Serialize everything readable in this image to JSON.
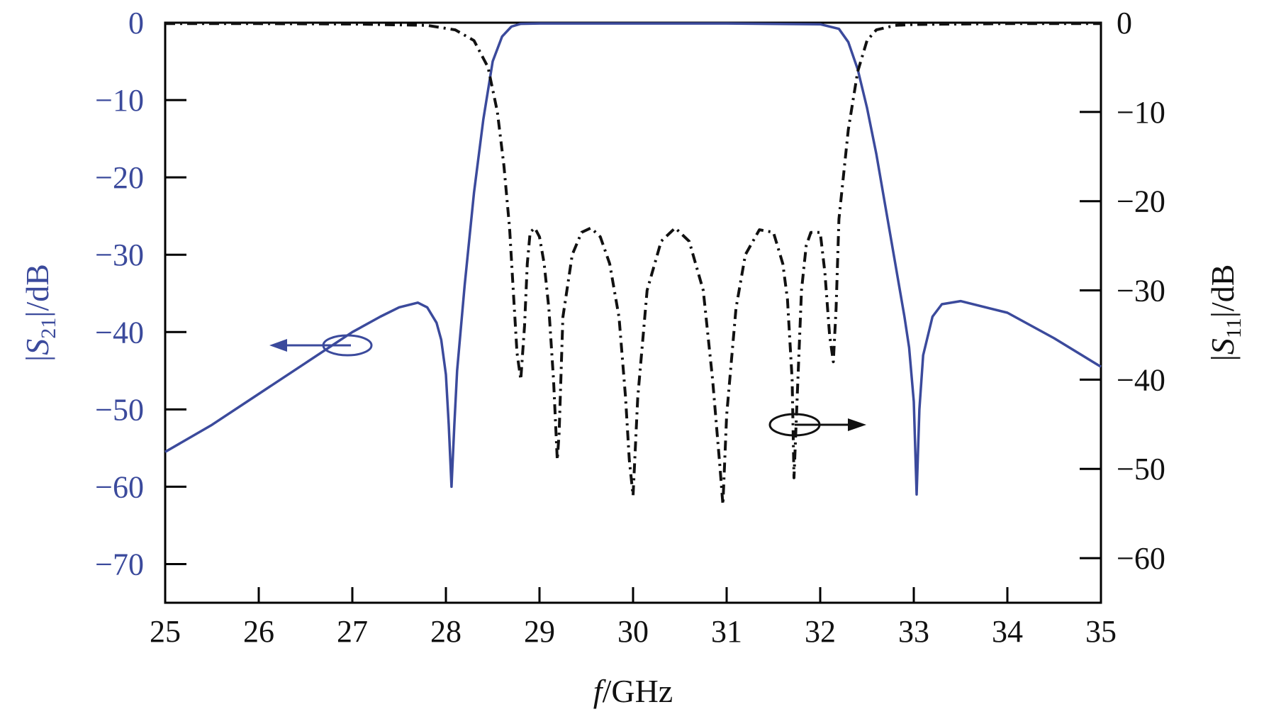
{
  "chart_data": {
    "type": "line",
    "xlabel": "f/GHz",
    "xlabel_parts": {
      "italic": "f",
      "rest": "/GHz"
    },
    "ylabel_left": "|S21|/dB",
    "ylabel_left_parts": {
      "bar_open": "|",
      "S": "S",
      "sub": "21",
      "rest": "|/dB"
    },
    "ylabel_right": "|S11|/dB",
    "ylabel_right_parts": {
      "bar_open": "|",
      "S": "S",
      "sub": "11",
      "rest": "|/dB"
    },
    "xlim": [
      25,
      35
    ],
    "ylim_left": [
      -75,
      0
    ],
    "ylim_right": [
      -65,
      0
    ],
    "x_ticks": [
      "25",
      "26",
      "27",
      "28",
      "29",
      "30",
      "31",
      "32",
      "33",
      "34",
      "35"
    ],
    "y_ticks_left": [
      "0",
      "−10",
      "−20",
      "−30",
      "−40",
      "−50",
      "−60",
      "−70"
    ],
    "y_ticks_left_values": [
      0,
      -10,
      -20,
      -30,
      -40,
      -50,
      -60,
      -70
    ],
    "y_ticks_right": [
      "0",
      "−10",
      "−20",
      "−30",
      "−40",
      "−50",
      "−60"
    ],
    "y_ticks_right_values": [
      0,
      -10,
      -20,
      -30,
      -40,
      -50,
      -60
    ],
    "grid": false,
    "series": [
      {
        "key": "s21",
        "axis": "left",
        "color": "#3b4a9c",
        "style": "solid",
        "x": [
          25.0,
          25.5,
          26.0,
          26.5,
          27.0,
          27.3,
          27.5,
          27.7,
          27.8,
          27.9,
          27.95,
          28.0,
          28.03,
          28.06,
          28.09,
          28.12,
          28.2,
          28.3,
          28.4,
          28.5,
          28.6,
          28.7,
          28.8,
          29.0,
          30.0,
          31.0,
          32.0,
          32.2,
          32.3,
          32.4,
          32.5,
          32.6,
          32.7,
          32.8,
          32.9,
          32.95,
          33.0,
          33.03,
          33.06,
          33.1,
          33.2,
          33.3,
          33.5,
          34.0,
          34.5,
          35.0
        ],
        "y": [
          -55.5,
          -52.0,
          -48.0,
          -44.0,
          -40.0,
          -38.0,
          -36.8,
          -36.2,
          -36.8,
          -38.8,
          -41.0,
          -45.5,
          -52.0,
          -60.0,
          -52.0,
          -45.0,
          -34.0,
          -22.0,
          -12.5,
          -5.0,
          -1.8,
          -0.5,
          -0.15,
          -0.1,
          -0.1,
          -0.1,
          -0.2,
          -0.8,
          -2.5,
          -6.0,
          -11.0,
          -17.0,
          -24.0,
          -31.0,
          -38.0,
          -42.0,
          -49.0,
          -61.0,
          -50.0,
          -43.0,
          -38.0,
          -36.4,
          -36.0,
          -37.5,
          -40.8,
          -44.5
        ]
      },
      {
        "key": "s11",
        "axis": "right",
        "color": "#111111",
        "style": "dash-dot",
        "x": [
          25.0,
          26.0,
          27.0,
          27.8,
          28.1,
          28.3,
          28.45,
          28.55,
          28.62,
          28.68,
          28.72,
          28.76,
          28.8,
          28.84,
          28.87,
          28.9,
          28.95,
          29.0,
          29.05,
          29.1,
          29.15,
          29.19,
          29.21,
          29.25,
          29.35,
          29.45,
          29.55,
          29.65,
          29.75,
          29.85,
          29.92,
          29.96,
          30.0,
          30.05,
          30.15,
          30.3,
          30.45,
          30.6,
          30.75,
          30.85,
          30.93,
          30.96,
          31.0,
          31.1,
          31.2,
          31.35,
          31.5,
          31.6,
          31.65,
          31.7,
          31.72,
          31.75,
          31.8,
          31.85,
          31.9,
          32.0,
          32.05,
          32.1,
          32.14,
          32.17,
          32.2,
          32.3,
          32.4,
          32.5,
          32.6,
          32.8,
          33.0,
          34.0,
          35.0
        ],
        "y": [
          -0.1,
          -0.1,
          -0.15,
          -0.3,
          -0.8,
          -2.0,
          -5.0,
          -10.0,
          -16.0,
          -23.0,
          -30.0,
          -37.0,
          -40.0,
          -34.0,
          -27.0,
          -23.5,
          -23.0,
          -24.0,
          -27.0,
          -32.0,
          -40.0,
          -49.0,
          -46.0,
          -33.0,
          -26.0,
          -23.5,
          -23.0,
          -24.0,
          -27.0,
          -33.0,
          -42.0,
          -49.0,
          -53.0,
          -42.0,
          -30.0,
          -24.5,
          -23.0,
          -24.5,
          -30.0,
          -40.0,
          -50.0,
          -54.0,
          -44.0,
          -32.0,
          -26.0,
          -23.2,
          -23.5,
          -27.0,
          -31.0,
          -40.0,
          -51.0,
          -43.0,
          -30.0,
          -25.0,
          -23.5,
          -23.5,
          -28.0,
          -35.0,
          -38.0,
          -32.0,
          -22.0,
          -12.0,
          -5.5,
          -2.0,
          -0.8,
          -0.3,
          -0.2,
          -0.1,
          -0.1
        ]
      }
    ]
  }
}
